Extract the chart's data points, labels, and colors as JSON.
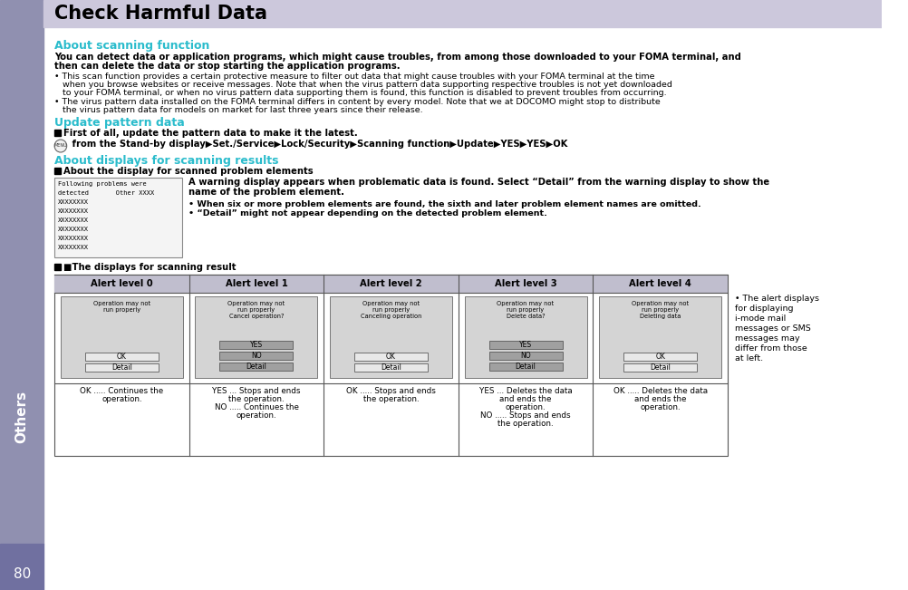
{
  "title": "Check Harmful Data",
  "title_bg": "#ccc8dc",
  "title_color": "#000000",
  "teal": "#2abccc",
  "section1_title": "About scanning function",
  "bold_line1": "You can detect data or application programs, which might cause troubles, from among those downloaded to your FOMA terminal, and",
  "bold_line2": "then can delete the data or stop starting the application programs.",
  "b1l1": "• This scan function provides a certain protective measure to filter out data that might cause troubles with your FOMA terminal at the time",
  "b1l2": "   when you browse websites or receive messages. Note that when the virus pattern data supporting respective troubles is not yet downloaded",
  "b1l3": "   to your FOMA terminal, or when no virus pattern data supporting them is found, this function is disabled to prevent troubles from occurring.",
  "b2l1": "• The virus pattern data installed on the FOMA terminal differs in content by every model. Note that we at DOCOMO might stop to distribute",
  "b2l2": "   the virus pattern data for models on market for last three years since their release.",
  "section2_title": "Update pattern data",
  "sub2": "First of all, update the pattern data to make it the latest.",
  "menu_line": " from the Stand-by display▶Set./Service▶Lock/Security▶Scanning function▶Update▶YES▶YES▶OK",
  "section3_title": "About displays for scanning results",
  "sub3": "About the display for scanned problem elements",
  "screen_lines": [
    "Following problems were",
    "detected       Other XXXX",
    "XXXXXXXX",
    "XXXXXXXX",
    "XXXXXXXX",
    "XXXXXXXX",
    "XXXXXXXX",
    "XXXXXXXX"
  ],
  "warn1": "A warning display appears when problematic data is found. Select “Detail” from the warning display to show the",
  "warn2": "name of the problem element.",
  "bw1": "• When six or more problem elements are found, the sixth and later problem element names are omitted.",
  "bw2": "• “Detail” might not appear depending on the detected problem element.",
  "tbl_hdr": "The displays for scanning result",
  "alert_headers": [
    "Alert level 0",
    "Alert level 1",
    "Alert level 2",
    "Alert level 3",
    "Alert level 4"
  ],
  "alert_hdr_bg": "#c0bece",
  "side_bg": "#9090b0",
  "side_dark": "#7070a0",
  "side_label": "Others",
  "page_num": "80",
  "note_lines": [
    "• The alert displays",
    "for displaying",
    "i-mode mail",
    "messages or SMS",
    "messages may",
    "differ from those",
    "at left."
  ],
  "screen_data": [
    {
      "lines": [
        "Operation may not",
        "run properly"
      ],
      "btns": [
        [
          "OK",
          false
        ],
        [
          "Detail",
          false
        ]
      ]
    },
    {
      "lines": [
        "Operation may not",
        "run properly",
        "Cancel operation?"
      ],
      "btns": [
        [
          "YES",
          true
        ],
        [
          "NO",
          true
        ],
        [
          "Detail",
          true
        ]
      ]
    },
    {
      "lines": [
        "Operation may not",
        "run properly",
        "Canceling operation"
      ],
      "btns": [
        [
          "OK",
          false
        ],
        [
          "Detail",
          false
        ]
      ]
    },
    {
      "lines": [
        "Operation may not",
        "run properly",
        "Delete data?"
      ],
      "btns": [
        [
          "YES",
          true
        ],
        [
          "NO",
          true
        ],
        [
          "Detail",
          true
        ]
      ]
    },
    {
      "lines": [
        "Operation may not",
        "run properly",
        "Deleting data"
      ],
      "btns": [
        [
          "OK",
          false
        ],
        [
          "Detail",
          false
        ]
      ]
    }
  ],
  "text_rows": [
    [
      "OK ..... Continues the",
      "operation."
    ],
    [
      "YES ... Stops and ends",
      "the operation.",
      "NO ..... Continues the",
      "operation."
    ],
    [
      "OK ..... Stops and ends",
      "the operation."
    ],
    [
      "YES ... Deletes the data",
      "and ends the",
      "operation.",
      "NO ..... Stops and ends",
      "the operation."
    ],
    [
      "OK ..... Deletes the data",
      "and ends the",
      "operation."
    ]
  ]
}
